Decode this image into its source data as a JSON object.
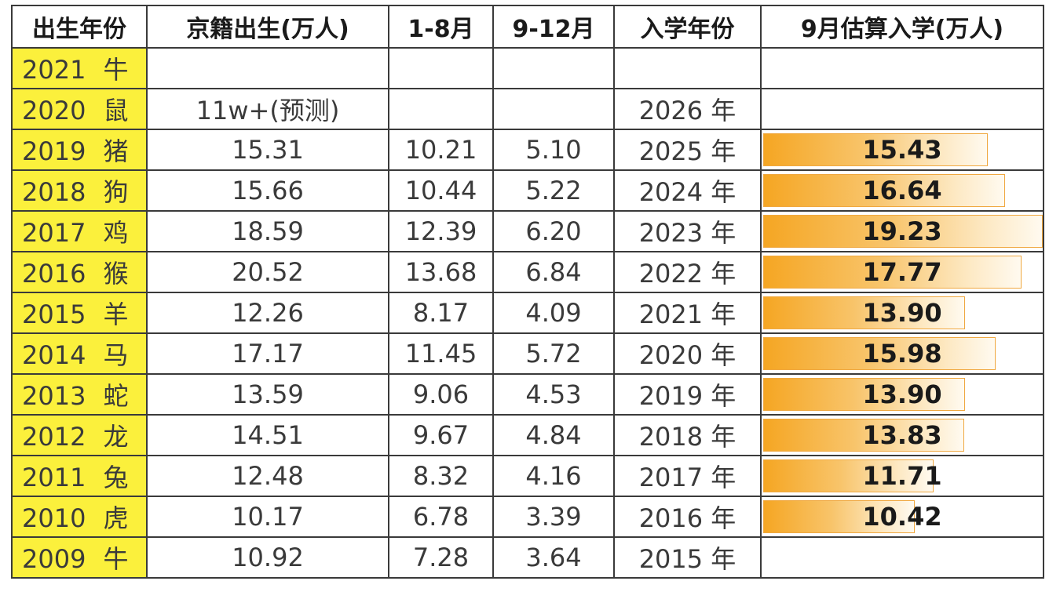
{
  "headers": [
    "出生年份",
    "京籍出生(万人)",
    "1-8月",
    "9-12月",
    "入学年份",
    "9月估算入学(万人)"
  ],
  "rows": [
    {
      "year": "2021",
      "zodiac": "牛",
      "births": "",
      "jan_aug": "",
      "sep_dec": "",
      "enroll_year": "",
      "enroll": null
    },
    {
      "year": "2020",
      "zodiac": "鼠",
      "births": "11w+(预测)",
      "jan_aug": "",
      "sep_dec": "",
      "enroll_year": "2026 年",
      "enroll": null
    },
    {
      "year": "2019",
      "zodiac": "猪",
      "births": "15.31",
      "jan_aug": "10.21",
      "sep_dec": "5.10",
      "enroll_year": "2025 年",
      "enroll": "15.43"
    },
    {
      "year": "2018",
      "zodiac": "狗",
      "births": "15.66",
      "jan_aug": "10.44",
      "sep_dec": "5.22",
      "enroll_year": "2024 年",
      "enroll": "16.64"
    },
    {
      "year": "2017",
      "zodiac": "鸡",
      "births": "18.59",
      "jan_aug": "12.39",
      "sep_dec": "6.20",
      "enroll_year": "2023 年",
      "enroll": "19.23"
    },
    {
      "year": "2016",
      "zodiac": "猴",
      "births": "20.52",
      "jan_aug": "13.68",
      "sep_dec": "6.84",
      "enroll_year": "2022 年",
      "enroll": "17.77"
    },
    {
      "year": "2015",
      "zodiac": "羊",
      "births": "12.26",
      "jan_aug": "8.17",
      "sep_dec": "4.09",
      "enroll_year": "2021 年",
      "enroll": "13.90"
    },
    {
      "year": "2014",
      "zodiac": "马",
      "births": "17.17",
      "jan_aug": "11.45",
      "sep_dec": "5.72",
      "enroll_year": "2020 年",
      "enroll": "15.98"
    },
    {
      "year": "2013",
      "zodiac": "蛇",
      "births": "13.59",
      "jan_aug": "9.06",
      "sep_dec": "4.53",
      "enroll_year": "2019 年",
      "enroll": "13.90"
    },
    {
      "year": "2012",
      "zodiac": "龙",
      "births": "14.51",
      "jan_aug": "9.67",
      "sep_dec": "4.84",
      "enroll_year": "2018 年",
      "enroll": "13.83"
    },
    {
      "year": "2011",
      "zodiac": "兔",
      "births": "12.48",
      "jan_aug": "8.32",
      "sep_dec": "4.16",
      "enroll_year": "2017 年",
      "enroll": "11.71"
    },
    {
      "year": "2010",
      "zodiac": "虎",
      "births": "10.17",
      "jan_aug": "6.78",
      "sep_dec": "3.39",
      "enroll_year": "2016 年",
      "enroll": "10.42"
    },
    {
      "year": "2009",
      "zodiac": "牛",
      "births": "10.92",
      "jan_aug": "7.28",
      "sep_dec": "3.64",
      "enroll_year": "2015 年",
      "enroll": null
    }
  ],
  "colors": {
    "year_fill": "#fbf03c",
    "bar_start": "#f5a623",
    "bar_end": "#fffaf0",
    "border": "#3a3a3a"
  }
}
